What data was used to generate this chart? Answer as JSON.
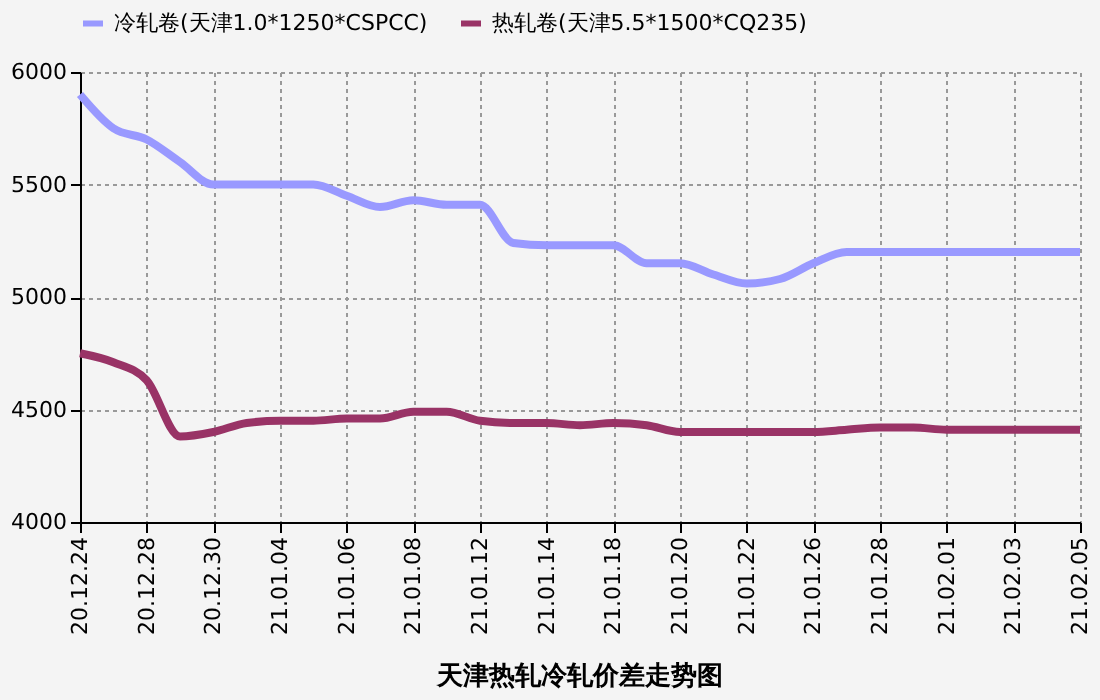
{
  "chart_data": {
    "type": "line",
    "title": "天津热轧冷轧价差走势图",
    "categories": [
      "20.12.24",
      null,
      "20.12.28",
      null,
      "20.12.30",
      null,
      "21.01.04",
      null,
      "21.01.06",
      null,
      "21.01.08",
      null,
      "21.01.12",
      null,
      "21.01.14",
      null,
      "21.01.18",
      null,
      "21.01.20",
      null,
      "21.01.22",
      null,
      "21.01.26",
      null,
      "21.01.28",
      null,
      "21.02.01",
      null,
      "21.02.03",
      null,
      "21.02.05"
    ],
    "series": [
      {
        "name": "冷轧卷(天津1.0*1250*CSPCC)",
        "color": "#9999ff",
        "values": [
          5900,
          5750,
          5700,
          5600,
          5500,
          5500,
          5500,
          5500,
          5450,
          5400,
          5430,
          5410,
          5410,
          5240,
          5230,
          5230,
          5230,
          5150,
          5150,
          5100,
          5060,
          5080,
          5150,
          5200,
          5200,
          5200,
          5200,
          5200,
          5200,
          5200,
          5200
        ]
      },
      {
        "name": "热轧卷(天津5.5*1500*CQ235)",
        "color": "#993366",
        "values": [
          4750,
          4710,
          4630,
          4380,
          4400,
          4440,
          4450,
          4450,
          4460,
          4460,
          4490,
          4490,
          4450,
          4440,
          4440,
          4430,
          4440,
          4430,
          4400,
          4400,
          4400,
          4400,
          4400,
          4410,
          4420,
          4420,
          4410,
          4410,
          4410,
          4410,
          4410
        ]
      }
    ],
    "ylim": [
      4000,
      6000
    ],
    "yticks": [
      4000,
      4500,
      5000,
      5500,
      6000
    ],
    "grid": true,
    "legend": "top",
    "marker": "none",
    "line_style": "solid"
  }
}
